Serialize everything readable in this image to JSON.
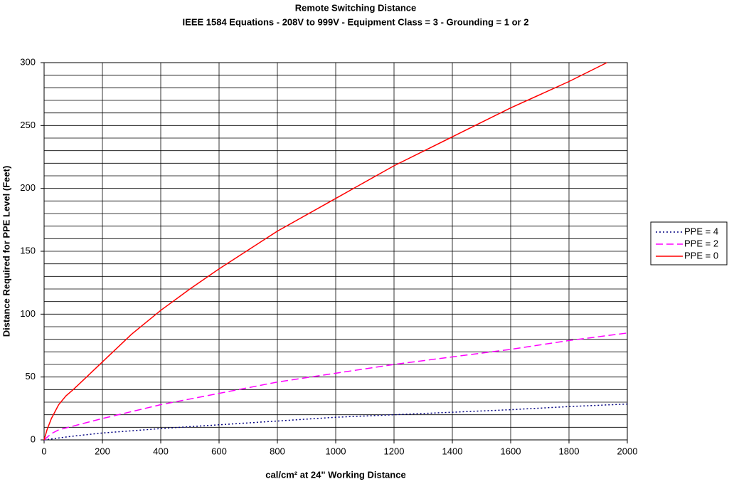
{
  "chart_data": {
    "type": "line",
    "title": "Remote Switching Distance",
    "subtitle": "IEEE 1584 Equations - 208V to 999V - Equipment Class = 3 - Grounding = 1 or 2",
    "xlabel": "cal/cm² at 24\" Working Distance",
    "ylabel": "Distance Required for PPE Level (Feet)",
    "xlim": [
      0,
      2000
    ],
    "xticks": [
      0,
      200,
      400,
      600,
      800,
      1000,
      1200,
      1400,
      1600,
      1800,
      2000
    ],
    "ylim": [
      0,
      300
    ],
    "yticks": [
      0,
      50,
      100,
      150,
      200,
      250,
      300
    ],
    "y_minor_ticks": [
      10,
      20,
      30,
      40,
      60,
      70,
      80,
      90,
      110,
      120,
      130,
      140,
      160,
      170,
      180,
      190,
      210,
      220,
      230,
      240,
      260,
      270,
      280,
      290
    ],
    "grid": true,
    "legend": "right",
    "series": [
      {
        "name": "PPE = 4",
        "color": "#000080",
        "style": "dotted",
        "x": [
          0,
          100,
          200,
          400,
          600,
          800,
          1000,
          1200,
          1400,
          1600,
          1800,
          2000
        ],
        "values": [
          0,
          3,
          5.5,
          9,
          12,
          15,
          18,
          20,
          22,
          24,
          26.5,
          28.5
        ]
      },
      {
        "name": "PPE = 2",
        "color": "#ff00ff",
        "style": "dashed",
        "x": [
          0,
          25,
          50,
          100,
          200,
          400,
          600,
          800,
          1000,
          1200,
          1400,
          1600,
          1800,
          2000
        ],
        "values": [
          0,
          5,
          8,
          11,
          17,
          28,
          37,
          46,
          53,
          60,
          66,
          72,
          79,
          85
        ]
      },
      {
        "name": "PPE = 0",
        "color": "#ff0000",
        "style": "solid",
        "x": [
          0,
          10,
          25,
          50,
          75,
          100,
          150,
          200,
          300,
          400,
          500,
          600,
          800,
          1000,
          1200,
          1400,
          1600,
          1800,
          1930
        ],
        "values": [
          0,
          8,
          17,
          28,
          35,
          40,
          51,
          62,
          84,
          103,
          120,
          136,
          166,
          192,
          218,
          241,
          264,
          285,
          300
        ]
      }
    ]
  }
}
